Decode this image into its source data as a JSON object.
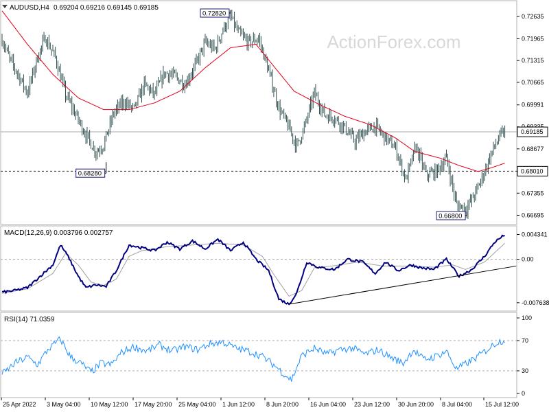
{
  "header": {
    "symbol": "AUDUSD,H4",
    "ohlc": "0.69204 0.69216 0.69145 0.69185"
  },
  "watermark": "ActionForex.com",
  "colors": {
    "price": "#2f4f4f",
    "ema": "#e0001a",
    "macd": "#000080",
    "signal": "#a0a0a0",
    "rsi": "#1e90ff",
    "box_border": "#1a1a7a",
    "last_price_bg": "#ffffff"
  },
  "chart_data": [
    {
      "type": "candlestick-bars",
      "panel": "price",
      "ylim": [
        0.6652,
        0.73
      ],
      "y_ticks": [
        "0.72635",
        "0.71965",
        "0.71315",
        "0.70665",
        "0.69991",
        "0.69335",
        "0.68677",
        "0.68010",
        "0.67355",
        "0.66695"
      ],
      "x_ticks": [
        "25 Apr 2022",
        "3 May 04:00",
        "10 May 12:00",
        "17 May 20:00",
        "25 May 04:00",
        "1 Jun 12:00",
        "8 Jun 20:00",
        "16 Jun 04:00",
        "23 Jun 12:00",
        "30 Jun 20:00",
        "8 Jul 04:00",
        "15 Jul 12:00"
      ],
      "last_price": "0.69185",
      "support_level": "0.68010",
      "annotations": [
        "0.72820",
        "0.68280",
        "0.66800"
      ],
      "annotation_values": [
        0.7282,
        0.6828,
        0.668
      ],
      "close_anchors": [
        [
          0,
          0.7195
        ],
        [
          6,
          0.7135
        ],
        [
          12,
          0.7095
        ],
        [
          20,
          0.7035
        ],
        [
          28,
          0.7142
        ],
        [
          34,
          0.72
        ],
        [
          42,
          0.714
        ],
        [
          50,
          0.703
        ],
        [
          58,
          0.697
        ],
        [
          66,
          0.691
        ],
        [
          74,
          0.6858
        ],
        [
          80,
          0.688
        ],
        [
          88,
          0.6975
        ],
        [
          96,
          0.701
        ],
        [
          104,
          0.6985
        ],
        [
          112,
          0.706
        ],
        [
          120,
          0.703
        ],
        [
          128,
          0.7095
        ],
        [
          136,
          0.7085
        ],
        [
          144,
          0.706
        ],
        [
          152,
          0.7115
        ],
        [
          160,
          0.7185
        ],
        [
          168,
          0.7165
        ],
        [
          174,
          0.7225
        ],
        [
          180,
          0.7262
        ],
        [
          186,
          0.7215
        ],
        [
          194,
          0.7185
        ],
        [
          202,
          0.7198
        ],
        [
          210,
          0.71
        ],
        [
          218,
          0.699
        ],
        [
          226,
          0.693
        ],
        [
          232,
          0.6875
        ],
        [
          238,
          0.693
        ],
        [
          246,
          0.7035
        ],
        [
          254,
          0.697
        ],
        [
          262,
          0.696
        ],
        [
          270,
          0.693
        ],
        [
          278,
          0.689
        ],
        [
          286,
          0.692
        ],
        [
          294,
          0.6935
        ],
        [
          302,
          0.69
        ],
        [
          310,
          0.687
        ],
        [
          318,
          0.6775
        ],
        [
          326,
          0.6875
        ],
        [
          334,
          0.679
        ],
        [
          342,
          0.68
        ],
        [
          350,
          0.684
        ],
        [
          358,
          0.67
        ],
        [
          366,
          0.669
        ],
        [
          374,
          0.6745
        ],
        [
          380,
          0.68
        ],
        [
          386,
          0.686
        ],
        [
          392,
          0.6905
        ],
        [
          396,
          0.6918
        ]
      ],
      "ema_anchors": [
        [
          0,
          0.728
        ],
        [
          20,
          0.718
        ],
        [
          40,
          0.709
        ],
        [
          60,
          0.702
        ],
        [
          80,
          0.6985
        ],
        [
          100,
          0.6985
        ],
        [
          120,
          0.7005
        ],
        [
          140,
          0.704
        ],
        [
          160,
          0.711
        ],
        [
          180,
          0.717
        ],
        [
          200,
          0.718
        ],
        [
          215,
          0.711
        ],
        [
          230,
          0.704
        ],
        [
          250,
          0.7
        ],
        [
          270,
          0.6965
        ],
        [
          290,
          0.694
        ],
        [
          310,
          0.69
        ],
        [
          325,
          0.686
        ],
        [
          345,
          0.684
        ],
        [
          360,
          0.6818
        ],
        [
          375,
          0.68
        ],
        [
          386,
          0.6812
        ],
        [
          396,
          0.6825
        ]
      ]
    },
    {
      "type": "line",
      "panel": "macd",
      "title": "MACD(12,26,9) 0.003796 0.002757",
      "ylim": [
        -0.0085,
        0.005
      ],
      "y_ticks": [
        "0.004341",
        "0.00",
        "-0.007638"
      ],
      "series": [
        {
          "name": "MACD",
          "anchors": [
            [
              0,
              -0.0058
            ],
            [
              10,
              -0.0055
            ],
            [
              20,
              -0.005
            ],
            [
              30,
              -0.003
            ],
            [
              40,
              -0.001
            ],
            [
              46,
              0.0025
            ],
            [
              52,
              0.0005
            ],
            [
              60,
              -0.003
            ],
            [
              66,
              -0.005
            ],
            [
              74,
              -0.0045
            ],
            [
              82,
              -0.0048
            ],
            [
              90,
              -0.002
            ],
            [
              100,
              0.0025
            ],
            [
              110,
              0.002
            ],
            [
              120,
              0.0015
            ],
            [
              130,
              0.003
            ],
            [
              140,
              0.0018
            ],
            [
              150,
              0.0032
            ],
            [
              160,
              0.0018
            ],
            [
              170,
              0.0035
            ],
            [
              180,
              0.0015
            ],
            [
              190,
              0.003
            ],
            [
              200,
              0.0
            ],
            [
              210,
              -0.002
            ],
            [
              218,
              -0.007
            ],
            [
              226,
              -0.0079
            ],
            [
              232,
              -0.006
            ],
            [
              240,
              -0.0005
            ],
            [
              250,
              -0.0015
            ],
            [
              262,
              -0.0018
            ],
            [
              272,
              0.0
            ],
            [
              284,
              -0.0005
            ],
            [
              294,
              -0.0025
            ],
            [
              302,
              -0.0005
            ],
            [
              312,
              -0.002
            ],
            [
              322,
              -0.001
            ],
            [
              330,
              -0.0015
            ],
            [
              340,
              -0.0018
            ],
            [
              350,
              0.0
            ],
            [
              360,
              -0.003
            ],
            [
              370,
              -0.0018
            ],
            [
              380,
              0.0005
            ],
            [
              388,
              0.003
            ],
            [
              396,
              0.0043
            ]
          ]
        },
        {
          "name": "Signal",
          "anchors": [
            [
              0,
              -0.006
            ],
            [
              20,
              -0.0052
            ],
            [
              40,
              -0.0025
            ],
            [
              50,
              0.001
            ],
            [
              60,
              -0.001
            ],
            [
              70,
              -0.004
            ],
            [
              80,
              -0.0046
            ],
            [
              90,
              -0.0035
            ],
            [
              100,
              0.0005
            ],
            [
              110,
              0.0015
            ],
            [
              130,
              0.0022
            ],
            [
              150,
              0.0025
            ],
            [
              170,
              0.0028
            ],
            [
              190,
              0.0025
            ],
            [
              205,
              0.0005
            ],
            [
              215,
              -0.003
            ],
            [
              226,
              -0.0065
            ],
            [
              236,
              -0.0055
            ],
            [
              246,
              -0.0015
            ],
            [
              260,
              -0.0012
            ],
            [
              280,
              -0.0005
            ],
            [
              300,
              -0.0012
            ],
            [
              320,
              -0.0012
            ],
            [
              340,
              -0.0014
            ],
            [
              355,
              -0.001
            ],
            [
              365,
              -0.0018
            ],
            [
              380,
              -0.0005
            ],
            [
              396,
              0.0028
            ]
          ]
        }
      ],
      "trendline": [
        [
          226,
          -0.0079
        ],
        [
          405,
          -0.0012
        ]
      ]
    },
    {
      "type": "line",
      "panel": "rsi",
      "title": "RSI(14) 71.0359",
      "ylim": [
        0,
        100
      ],
      "y_ticks": [
        "100",
        "70",
        "30",
        "0"
      ],
      "levels": [
        70,
        30
      ],
      "series": [
        {
          "name": "RSI",
          "anchors": [
            [
              0,
              25
            ],
            [
              10,
              40
            ],
            [
              20,
              48
            ],
            [
              28,
              38
            ],
            [
              36,
              58
            ],
            [
              46,
              72
            ],
            [
              54,
              48
            ],
            [
              62,
              40
            ],
            [
              70,
              28
            ],
            [
              78,
              40
            ],
            [
              86,
              38
            ],
            [
              94,
              54
            ],
            [
              104,
              62
            ],
            [
              114,
              56
            ],
            [
              124,
              64
            ],
            [
              134,
              56
            ],
            [
              144,
              62
            ],
            [
              154,
              58
            ],
            [
              164,
              66
            ],
            [
              174,
              68
            ],
            [
              184,
              60
            ],
            [
              194,
              56
            ],
            [
              204,
              50
            ],
            [
              214,
              38
            ],
            [
              222,
              26
            ],
            [
              228,
              18
            ],
            [
              236,
              50
            ],
            [
              246,
              60
            ],
            [
              256,
              52
            ],
            [
              266,
              58
            ],
            [
              276,
              60
            ],
            [
              286,
              52
            ],
            [
              296,
              58
            ],
            [
              306,
              48
            ],
            [
              316,
              40
            ],
            [
              324,
              58
            ],
            [
              332,
              45
            ],
            [
              340,
              48
            ],
            [
              350,
              56
            ],
            [
              358,
              32
            ],
            [
              366,
              40
            ],
            [
              374,
              48
            ],
            [
              382,
              58
            ],
            [
              390,
              68
            ],
            [
              396,
              71
            ]
          ]
        }
      ]
    }
  ]
}
